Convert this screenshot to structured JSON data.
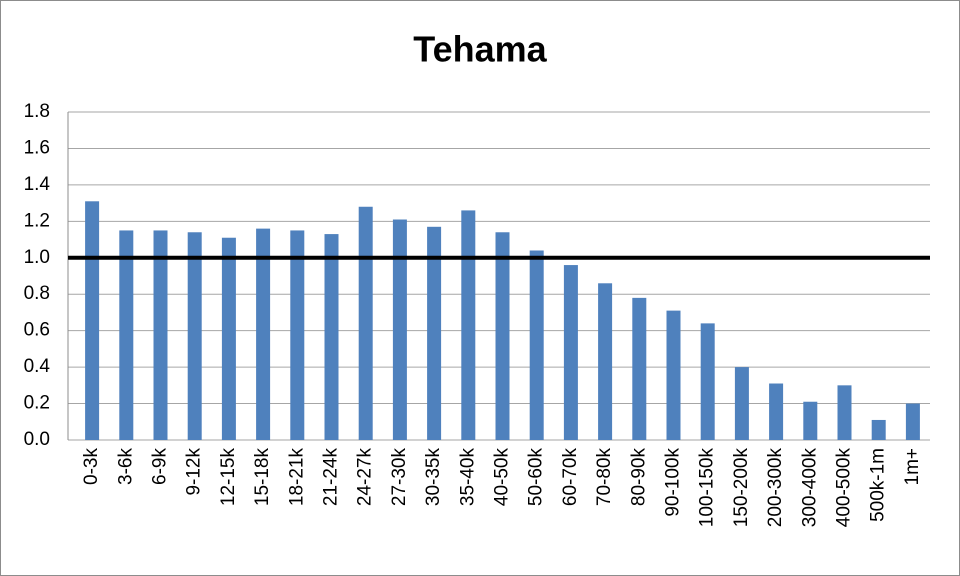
{
  "chart_data": {
    "type": "bar",
    "title": "Tehama",
    "categories": [
      "0-3k",
      "3-6k",
      "6-9k",
      "9-12k",
      "12-15k",
      "15-18k",
      "18-21k",
      "21-24k",
      "24-27k",
      "27-30k",
      "30-35k",
      "35-40k",
      "40-50k",
      "50-60k",
      "60-70k",
      "70-80k",
      "80-90k",
      "90-100k",
      "100-150k",
      "150-200k",
      "200-300k",
      "300-400k",
      "400-500k",
      "500k-1m",
      "1m+"
    ],
    "values": [
      1.31,
      1.15,
      1.15,
      1.14,
      1.11,
      1.16,
      1.15,
      1.13,
      1.28,
      1.21,
      1.17,
      1.26,
      1.14,
      1.04,
      0.96,
      0.86,
      0.78,
      0.71,
      0.64,
      0.4,
      0.31,
      0.21,
      0.3,
      0.11,
      0.2
    ],
    "color": "#4f81bd",
    "ylim": [
      0,
      1.8
    ],
    "yticks": [
      {
        "value": 0,
        "label": "0.0"
      },
      0.2,
      0.4,
      0.6,
      0.8,
      {
        "value": 1,
        "label": "1.0"
      },
      1.2,
      1.4,
      1.6,
      1.8
    ],
    "grid": true,
    "reference_line": 1
  }
}
